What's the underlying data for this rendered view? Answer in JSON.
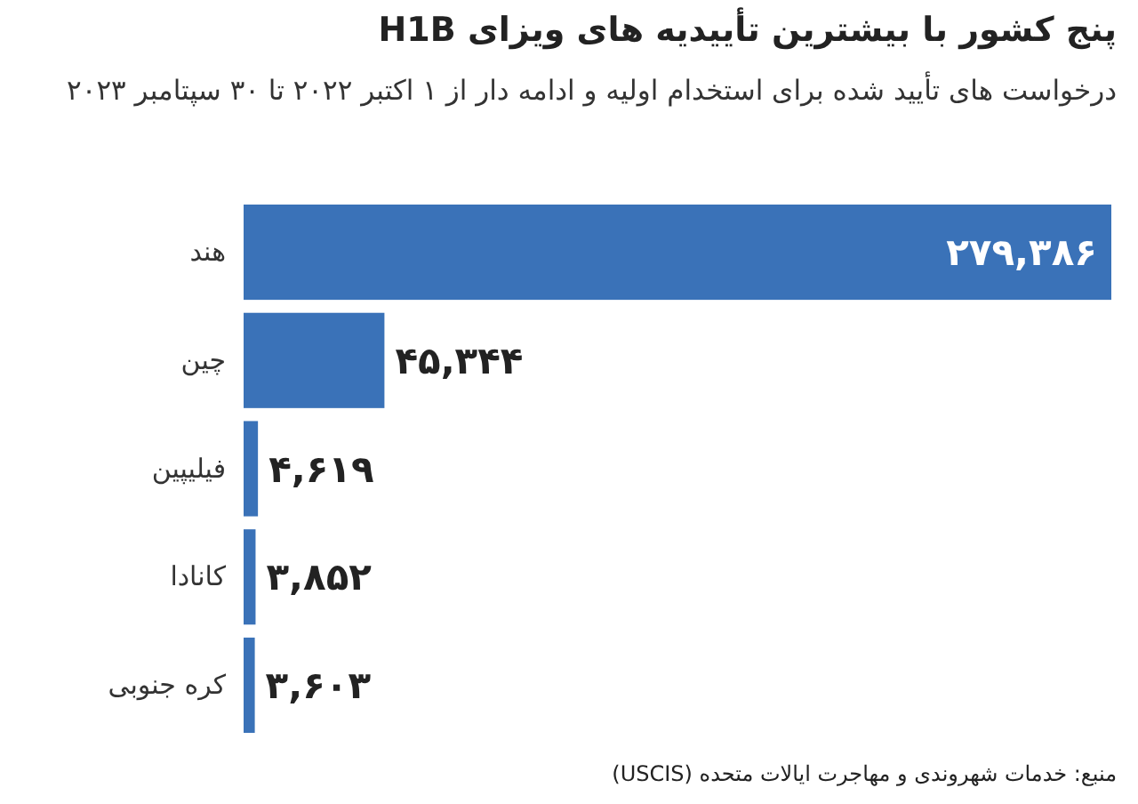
{
  "chart_data": {
    "type": "bar",
    "orientation": "horizontal",
    "title": "پنج کشور با بیشترین تأییدیه های ویزای H1B",
    "subtitle": "درخواست های تأیید شده برای استخدام اولیه و ادامه دار از ۱ اکتبر ۲۰۲۲ تا ۳۰ سپتامبر ۲۰۲۳",
    "categories": [
      "هند",
      "چین",
      "فیلیپین",
      "کانادا",
      "کره جنوبی"
    ],
    "values": [
      279386,
      45344,
      4619,
      3852,
      3603
    ],
    "value_labels": [
      "۲۷۹,۳۸۶",
      "۴۵,۳۴۴",
      "۴,۶۱۹",
      "۳,۸۵۲",
      "۳,۶۰۳"
    ],
    "color": "#3a72b8",
    "annotations": [
      "منبع: خدمات شهروندی و مهاجرت ایالات متحده (USCIS)"
    ]
  }
}
